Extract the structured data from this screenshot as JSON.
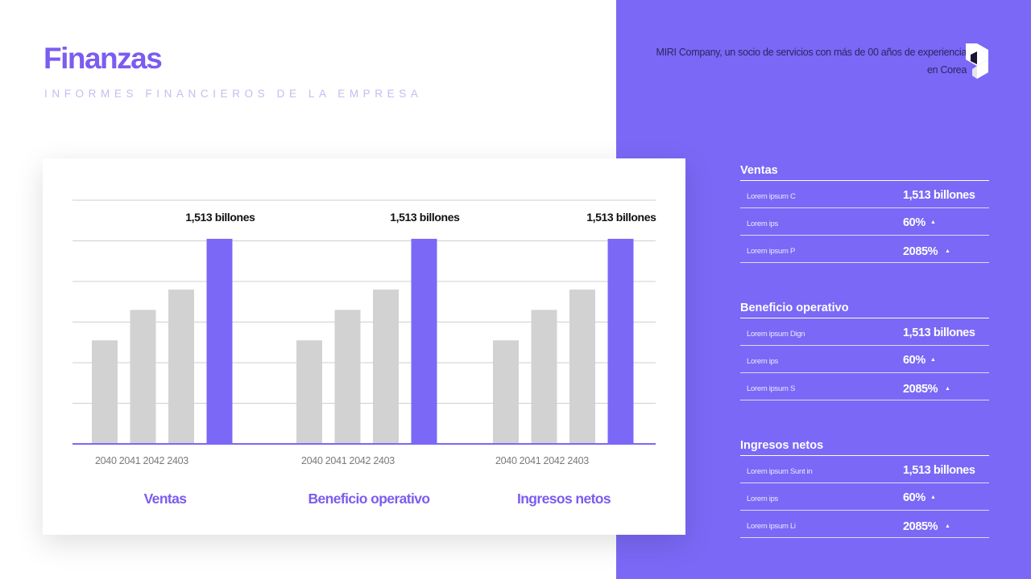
{
  "header": {
    "title": "Finanzas",
    "subtitle": "INFORMES FINANCIEROS DE LA EMPRESA"
  },
  "company": {
    "line1": "MIRI Company, un socio de servicios con más de 00 años de experiencia",
    "line2": "en Corea"
  },
  "colors": {
    "accent": "#7b68f6",
    "highlight_bar": "#7b68f6",
    "bar": "#d2d2d2",
    "title": "#7b5cf0"
  },
  "chart_data": [
    {
      "type": "bar",
      "title": "Ventas",
      "categories": [
        "2040",
        "2041",
        "2042",
        "2403"
      ],
      "values": [
        51,
        66,
        76,
        101
      ],
      "value_label": "1,513 billones",
      "ylim": [
        0,
        120
      ],
      "grid": true,
      "highlight": "2403"
    },
    {
      "type": "bar",
      "title": "Beneficio operativo",
      "categories": [
        "2040",
        "2041",
        "2042",
        "2403"
      ],
      "values": [
        51,
        66,
        76,
        101
      ],
      "value_label": "1,513 billones",
      "ylim": [
        0,
        120
      ],
      "grid": true,
      "highlight": "2403"
    },
    {
      "type": "bar",
      "title": "Ingresos netos",
      "categories": [
        "2040",
        "2041",
        "2042",
        "2403"
      ],
      "values": [
        51,
        66,
        76,
        101
      ],
      "value_label": "1,513 billones",
      "ylim": [
        0,
        120
      ],
      "grid": true,
      "highlight": "2403"
    }
  ],
  "metrics": [
    {
      "title": "Ventas",
      "rows": [
        {
          "label": "Lorem ipsum C",
          "value": "1,513 billones",
          "arrow": ""
        },
        {
          "label": "Lorem ips",
          "value": "60%",
          "arrow": "▲"
        },
        {
          "label": "Lorem ipsum P",
          "value": "2085%",
          "arrow": "▲"
        }
      ]
    },
    {
      "title": "Beneficio operativo",
      "rows": [
        {
          "label": "Lorem ipsum Dign",
          "value": "1,513 billones",
          "arrow": ""
        },
        {
          "label": "Lorem ips",
          "value": "60%",
          "arrow": "▲"
        },
        {
          "label": "Lorem ipsum S",
          "value": "2085%",
          "arrow": "▲"
        }
      ]
    },
    {
      "title": "Ingresos netos",
      "rows": [
        {
          "label": "Lorem ipsum Sunt in",
          "value": "1,513 billones",
          "arrow": ""
        },
        {
          "label": "Lorem ips",
          "value": "60%",
          "arrow": "▲"
        },
        {
          "label": "Lorem ipsum Li",
          "value": "2085%",
          "arrow": "▲"
        }
      ]
    }
  ]
}
